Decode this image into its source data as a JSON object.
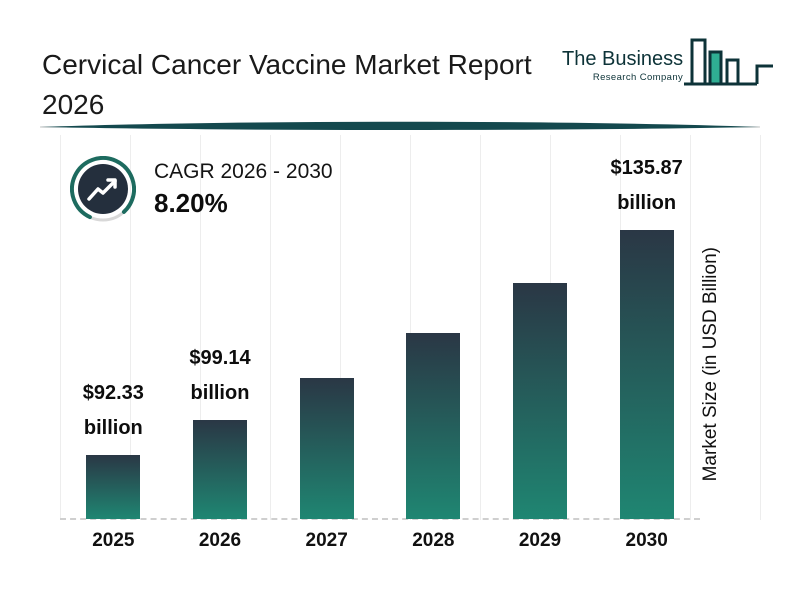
{
  "header": {
    "title": "Cervical Cancer Vaccine Market Report 2026",
    "logo": {
      "line1": "The Business",
      "line2": "Research Company"
    }
  },
  "cagr": {
    "label": "CAGR 2026 - 2030",
    "value": "8.20%"
  },
  "chart_data": {
    "type": "bar",
    "title": "Cervical Cancer Vaccine Market Report 2026",
    "categories": [
      "2025",
      "2026",
      "2027",
      "2028",
      "2029",
      "2030"
    ],
    "values": [
      92.33,
      99.14,
      107.27,
      116.07,
      125.59,
      135.87
    ],
    "data_labels": [
      "$92.33 billion",
      "$99.14 billion",
      "",
      "",
      "",
      "$135.87 billion"
    ],
    "labeled_points": {
      "2025": "$92.33 billion",
      "2026": "$99.14 billion",
      "2030": "$135.87 billion"
    },
    "cagr": "8.20%",
    "cagr_period": "CAGR 2026 - 2030",
    "xlabel": "",
    "ylabel": "Market Size (in USD Billion)",
    "unit": "USD Billion",
    "ylim_visual": [
      80,
      140
    ],
    "grid": "vertical-light",
    "baseline_style": "dashed",
    "bar_gradient": [
      "#2a3745",
      "#1f8672"
    ]
  },
  "colors": {
    "background": "#ffffff",
    "title_text": "#1a1a1a",
    "accent_dark_teal": "#14494e",
    "logo_teal": "#0d3338",
    "logo_green": "#2fae93",
    "icon_ring_teal": "#1d6b5f",
    "icon_ring_gray": "#d8d8d8",
    "icon_inner_navy": "#242f3d",
    "grid_line": "#ededed",
    "baseline_dash": "#cfcfcf"
  }
}
